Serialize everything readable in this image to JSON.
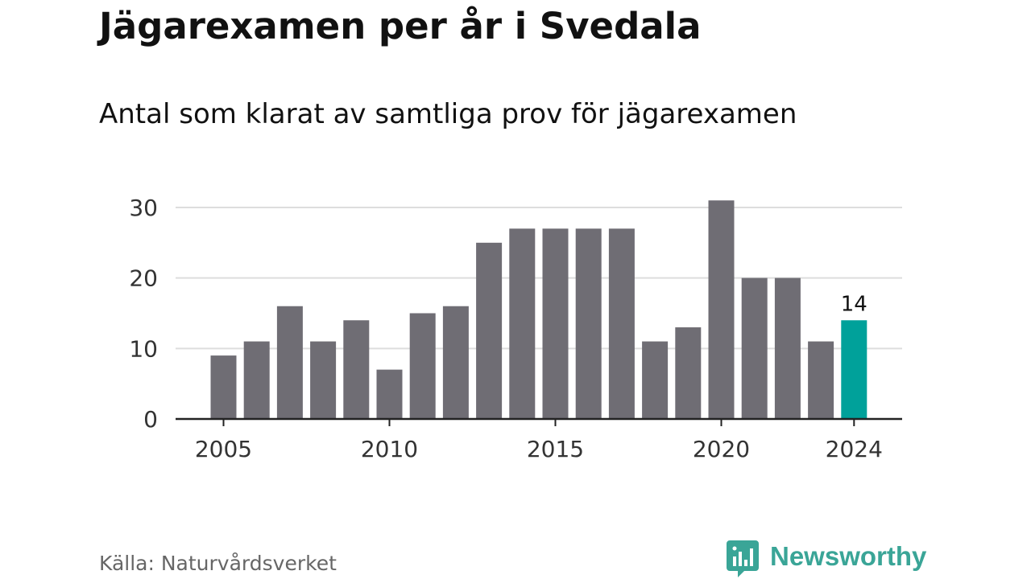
{
  "header": {
    "title": "Jägarexamen per år i Svedala",
    "subtitle": "Antal som klarat av samtliga prov för jägarexamen"
  },
  "footer": {
    "source": "Källa: Naturvårdsverket",
    "brand": "Newsworthy"
  },
  "colors": {
    "bar": "#6f6d74",
    "highlight": "#00a19a",
    "brand": "#3aa597",
    "grid": "#dddddd",
    "axis": "#222222",
    "text": "#111111"
  },
  "chart_data": {
    "type": "bar",
    "categories": [
      "2005",
      "2006",
      "2007",
      "2008",
      "2009",
      "2010",
      "2011",
      "2012",
      "2013",
      "2014",
      "2015",
      "2016",
      "2017",
      "2018",
      "2019",
      "2020",
      "2021",
      "2022",
      "2023",
      "2024"
    ],
    "values": [
      9,
      11,
      16,
      11,
      14,
      7,
      15,
      16,
      25,
      27,
      27,
      27,
      27,
      11,
      13,
      31,
      20,
      20,
      11,
      14
    ],
    "highlight_index": 19,
    "highlight_label": "14",
    "x_tick_labels": [
      "2005",
      "2010",
      "2015",
      "2020",
      "2024"
    ],
    "y_ticks": [
      0,
      10,
      20,
      30
    ],
    "ylim": [
      0,
      32
    ],
    "grid": true,
    "title": "Jägarexamen per år i Svedala",
    "subtitle": "Antal som klarat av samtliga prov för jägarexamen",
    "xlabel": "",
    "ylabel": ""
  }
}
